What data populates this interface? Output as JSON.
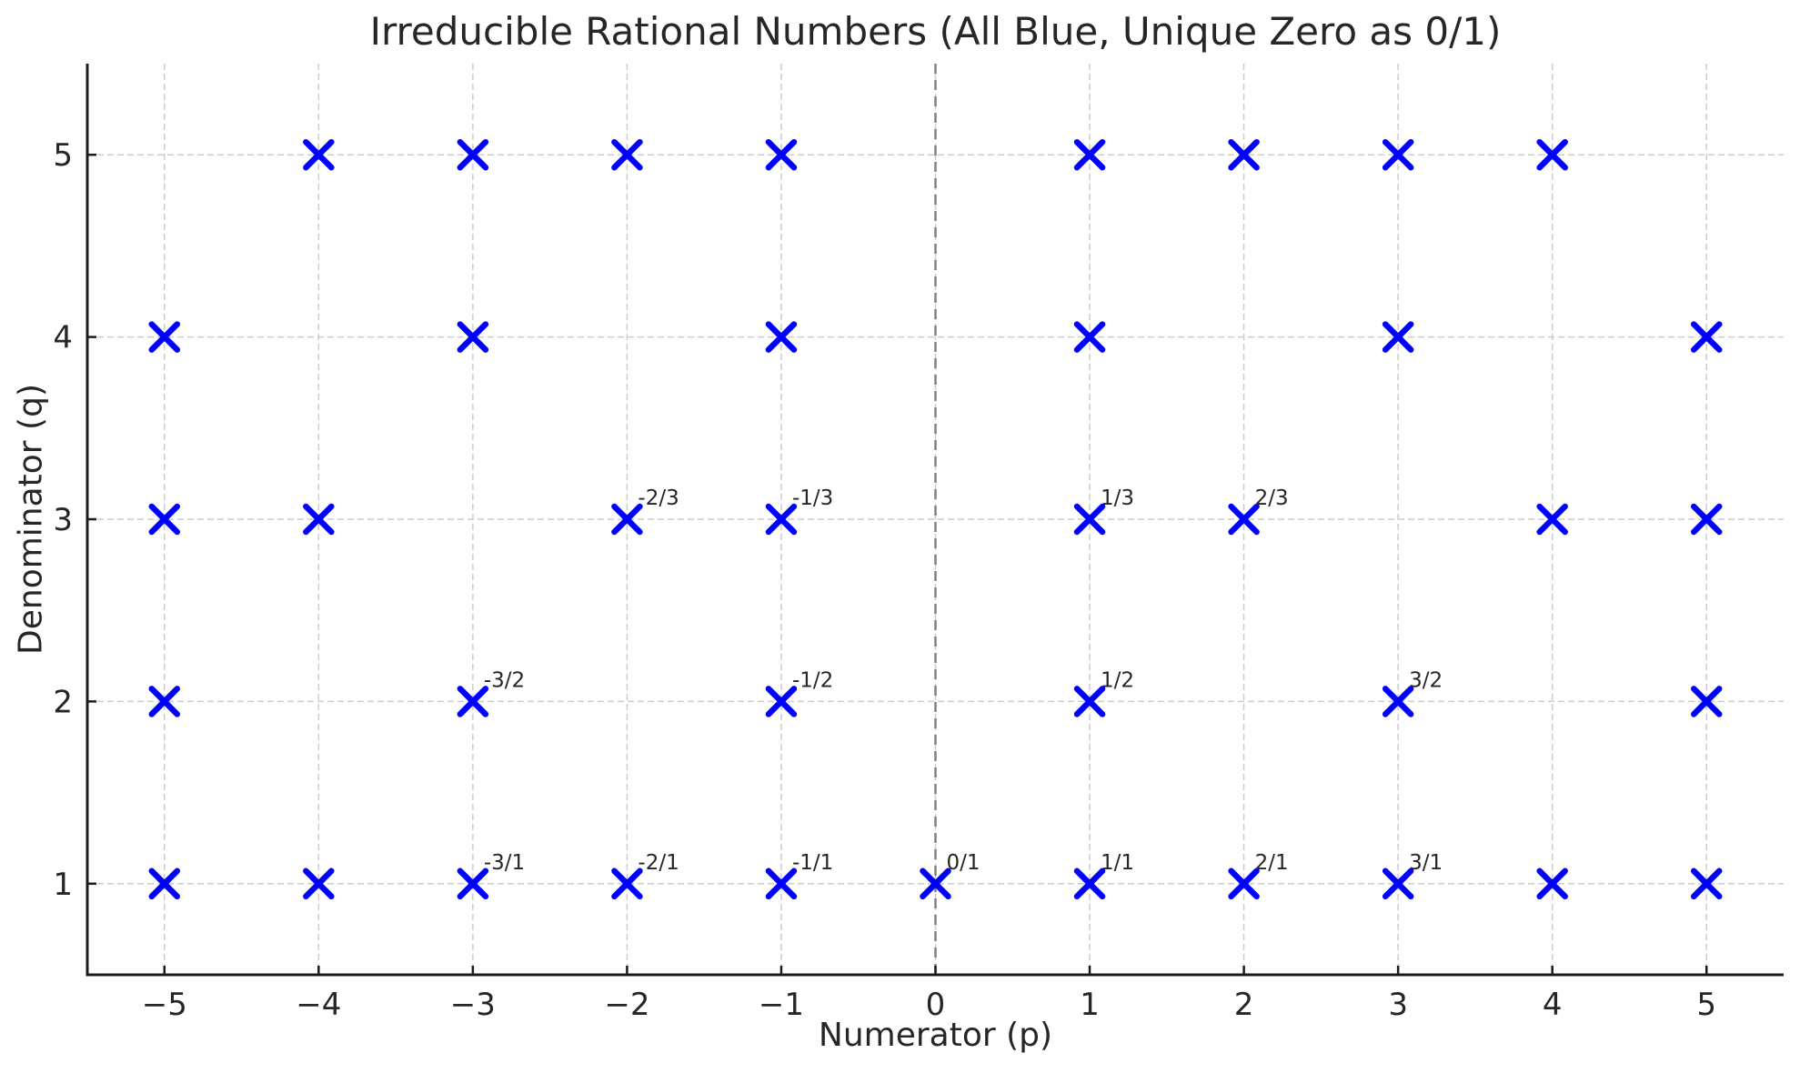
{
  "chart_data": {
    "type": "scatter",
    "title": "Irreducible Rational Numbers (All Blue, Unique Zero as 0/1)",
    "xlabel": "Numerator (p)",
    "ylabel": "Denominator (q)",
    "xlim": [
      -5.5,
      5.5
    ],
    "ylim": [
      0.5,
      5.5
    ],
    "grid": {
      "on": true,
      "color": "#cccccc",
      "style": "dashed"
    },
    "legend": "none",
    "zero_line": {
      "x": 0,
      "color": "#808080",
      "style": "dashed"
    },
    "marker": {
      "shape": "x",
      "color": "#0000FF",
      "size": 28,
      "stroke_width": 6.5
    },
    "axis_color": "#1a1a1a",
    "text_color": "#262626",
    "xticks": [
      {
        "value": -5,
        "label": "−5"
      },
      {
        "value": -4,
        "label": "−4"
      },
      {
        "value": -3,
        "label": "−3"
      },
      {
        "value": -2,
        "label": "−2"
      },
      {
        "value": -1,
        "label": "−1"
      },
      {
        "value": 0,
        "label": "0"
      },
      {
        "value": 1,
        "label": "1"
      },
      {
        "value": 2,
        "label": "2"
      },
      {
        "value": 3,
        "label": "3"
      },
      {
        "value": 4,
        "label": "4"
      },
      {
        "value": 5,
        "label": "5"
      }
    ],
    "yticks": [
      {
        "value": 1,
        "label": "1"
      },
      {
        "value": 2,
        "label": "2"
      },
      {
        "value": 3,
        "label": "3"
      },
      {
        "value": 4,
        "label": "4"
      },
      {
        "value": 5,
        "label": "5"
      }
    ],
    "points": [
      {
        "p": -5,
        "q": 1
      },
      {
        "p": -4,
        "q": 1
      },
      {
        "p": -3,
        "q": 1,
        "label": "-3/1"
      },
      {
        "p": -2,
        "q": 1,
        "label": "-2/1"
      },
      {
        "p": -1,
        "q": 1,
        "label": "-1/1"
      },
      {
        "p": 0,
        "q": 1,
        "label": "0/1"
      },
      {
        "p": 1,
        "q": 1,
        "label": "1/1"
      },
      {
        "p": 2,
        "q": 1,
        "label": "2/1"
      },
      {
        "p": 3,
        "q": 1,
        "label": "3/1"
      },
      {
        "p": 4,
        "q": 1
      },
      {
        "p": 5,
        "q": 1
      },
      {
        "p": -5,
        "q": 2
      },
      {
        "p": -3,
        "q": 2,
        "label": "-3/2"
      },
      {
        "p": -1,
        "q": 2,
        "label": "-1/2"
      },
      {
        "p": 1,
        "q": 2,
        "label": "1/2"
      },
      {
        "p": 3,
        "q": 2,
        "label": "3/2"
      },
      {
        "p": 5,
        "q": 2
      },
      {
        "p": -5,
        "q": 3
      },
      {
        "p": -4,
        "q": 3
      },
      {
        "p": -2,
        "q": 3,
        "label": "-2/3"
      },
      {
        "p": -1,
        "q": 3,
        "label": "-1/3"
      },
      {
        "p": 1,
        "q": 3,
        "label": "1/3"
      },
      {
        "p": 2,
        "q": 3,
        "label": "2/3"
      },
      {
        "p": 4,
        "q": 3
      },
      {
        "p": 5,
        "q": 3
      },
      {
        "p": -5,
        "q": 4
      },
      {
        "p": -3,
        "q": 4
      },
      {
        "p": -1,
        "q": 4
      },
      {
        "p": 1,
        "q": 4
      },
      {
        "p": 3,
        "q": 4
      },
      {
        "p": 5,
        "q": 4
      },
      {
        "p": -4,
        "q": 5
      },
      {
        "p": -3,
        "q": 5
      },
      {
        "p": -2,
        "q": 5
      },
      {
        "p": -1,
        "q": 5
      },
      {
        "p": 1,
        "q": 5
      },
      {
        "p": 2,
        "q": 5
      },
      {
        "p": 3,
        "q": 5
      },
      {
        "p": 4,
        "q": 5
      }
    ]
  }
}
